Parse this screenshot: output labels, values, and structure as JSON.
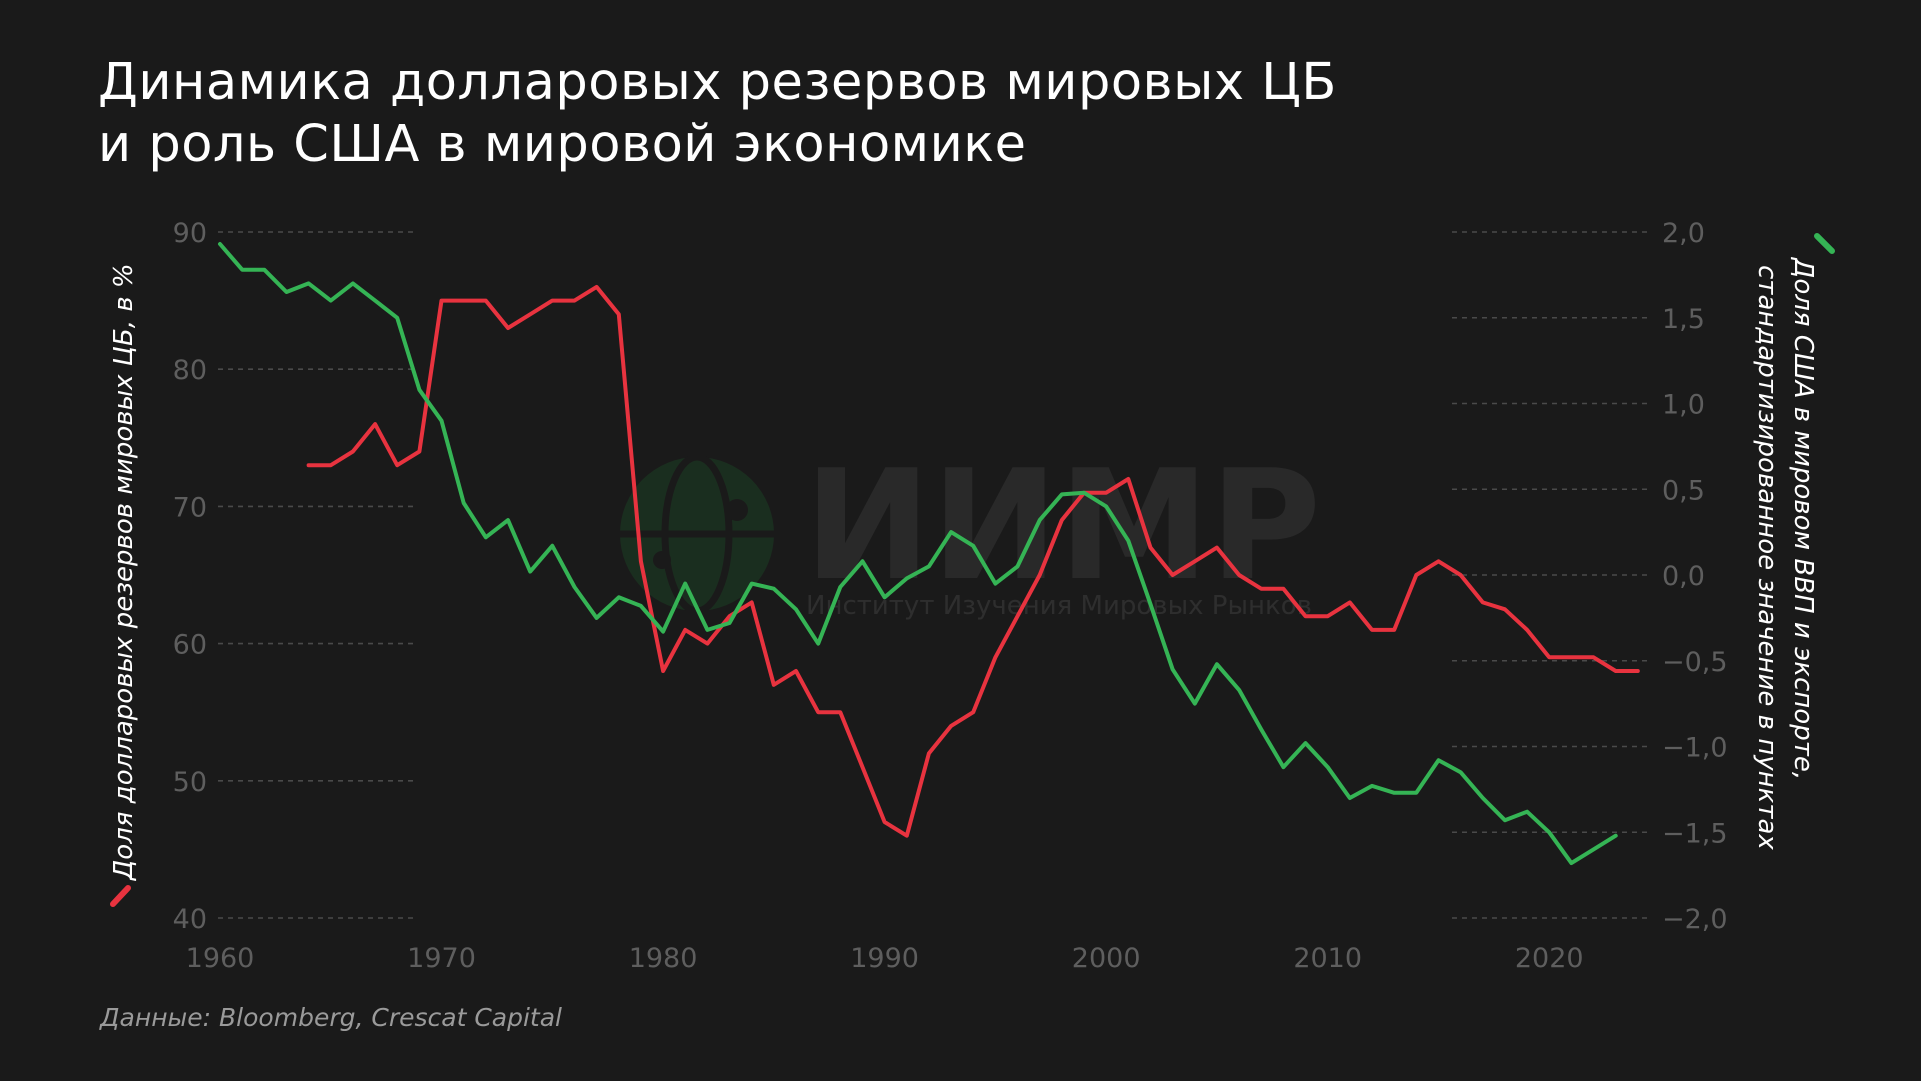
{
  "title": {
    "line1": "Динамика долларовых резервов мировых ЦБ",
    "line2": "и роль США в мировой экономике"
  },
  "source": "Данные: Bloomberg, Crescat Capital",
  "watermark": {
    "name": "ИИМР",
    "subtitle": "Институт Изучения Мировых Рынков"
  },
  "colors": {
    "reserves": "#e8333f",
    "us_share": "#35b455",
    "background": "#1a1a1a",
    "grid": "#4a4a4a",
    "ticks": "#5e5e5e"
  },
  "chart_data": {
    "type": "line",
    "x_ticks": [
      1960,
      1970,
      1980,
      1990,
      2000,
      2010,
      2020
    ],
    "xlim": [
      1960,
      2025
    ],
    "left_axis": {
      "label": "Доля долларовых резервов мировых ЦБ, в %",
      "ylim": [
        40,
        90
      ],
      "ticks": [
        40,
        50,
        60,
        70,
        80,
        90
      ],
      "tick_labels": [
        "40",
        "50",
        "60",
        "70",
        "80",
        "90"
      ]
    },
    "right_axis": {
      "label_line1": "Доля США в мировом ВВП и экспорте,",
      "label_line2": "стандартизированное значение в пунктах",
      "ylim": [
        -2.0,
        2.0
      ],
      "ticks": [
        -2.0,
        -1.5,
        -1.0,
        -0.5,
        0.0,
        0.5,
        1.0,
        1.5,
        2.0
      ],
      "tick_labels": [
        "−2,0",
        "−1,5",
        "−1,0",
        "−0,5",
        "0,0",
        "0,5",
        "1,0",
        "1,5",
        "2,0"
      ]
    },
    "series": [
      {
        "name": "Доля долларовых резервов мировых ЦБ, в %",
        "axis": "left",
        "color": "#e8333f",
        "x": [
          1964,
          1965,
          1966,
          1967,
          1968,
          1969,
          1970,
          1971,
          1972,
          1973,
          1974,
          1975,
          1976,
          1977,
          1978,
          1979,
          1980,
          1981,
          1982,
          1983,
          1984,
          1985,
          1986,
          1987,
          1988,
          1989,
          1990,
          1991,
          1992,
          1993,
          1994,
          1995,
          1996,
          1997,
          1998,
          1999,
          2000,
          2001,
          2002,
          2003,
          2004,
          2005,
          2006,
          2007,
          2008,
          2009,
          2010,
          2011,
          2012,
          2013,
          2014,
          2015,
          2016,
          2017,
          2018,
          2019,
          2020,
          2021,
          2022,
          2023,
          2024
        ],
        "y": [
          73,
          73,
          74,
          76,
          73,
          74,
          85,
          85,
          85,
          83,
          84,
          85,
          85,
          86,
          84,
          66,
          58,
          61,
          60,
          62,
          63,
          57,
          58,
          55,
          55,
          51,
          47,
          46,
          52,
          54,
          55,
          59,
          62,
          65,
          69,
          71,
          71,
          72,
          67,
          65,
          66,
          67,
          65,
          64,
          64,
          62,
          62,
          63,
          61,
          61,
          65,
          66,
          65,
          63,
          62.5,
          61,
          59,
          59,
          59,
          58,
          58
        ]
      },
      {
        "name": "Доля США в мировом ВВП и экспорте, стандартизированное значение в пунктах",
        "axis": "right",
        "color": "#35b455",
        "x": [
          1960,
          1961,
          1962,
          1963,
          1964,
          1965,
          1966,
          1967,
          1968,
          1969,
          1970,
          1971,
          1972,
          1973,
          1974,
          1975,
          1976,
          1977,
          1978,
          1979,
          1980,
          1981,
          1982,
          1983,
          1984,
          1985,
          1986,
          1987,
          1988,
          1989,
          1990,
          1991,
          1992,
          1993,
          1994,
          1995,
          1996,
          1997,
          1998,
          1999,
          2000,
          2001,
          2002,
          2003,
          2004,
          2005,
          2006,
          2007,
          2008,
          2009,
          2010,
          2011,
          2012,
          2013,
          2014,
          2015,
          2016,
          2017,
          2018,
          2019,
          2020,
          2021,
          2022,
          2023
        ],
        "y": [
          1.93,
          1.78,
          1.78,
          1.65,
          1.7,
          1.6,
          1.7,
          1.6,
          1.5,
          1.08,
          0.9,
          0.42,
          0.22,
          0.32,
          0.02,
          0.17,
          -0.07,
          -0.25,
          -0.13,
          -0.18,
          -0.33,
          -0.05,
          -0.32,
          -0.28,
          -0.05,
          -0.08,
          -0.2,
          -0.4,
          -0.07,
          0.08,
          -0.13,
          -0.02,
          0.05,
          0.25,
          0.17,
          -0.05,
          0.05,
          0.32,
          0.47,
          0.48,
          0.4,
          0.2,
          -0.17,
          -0.55,
          -0.75,
          -0.52,
          -0.67,
          -0.9,
          -1.12,
          -0.98,
          -1.12,
          -1.3,
          -1.23,
          -1.27,
          -1.27,
          -1.08,
          -1.15,
          -1.3,
          -1.43,
          -1.38,
          -1.5,
          -1.68,
          -1.6,
          -1.52
        ]
      }
    ],
    "grid": "dashed horizontal, left and right segments"
  }
}
